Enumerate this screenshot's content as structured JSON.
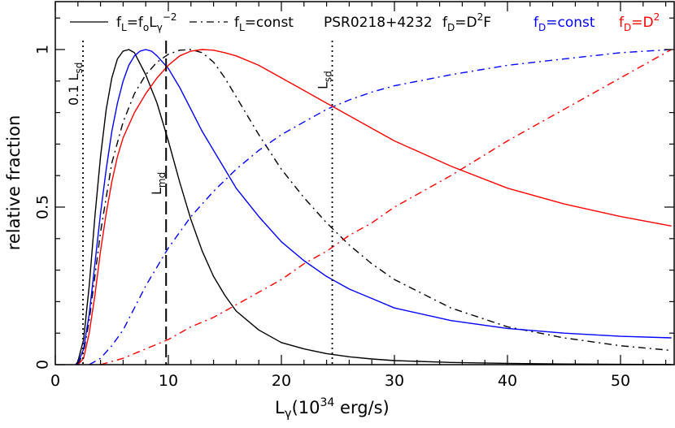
{
  "chart_data": {
    "type": "line",
    "xlabel": "L",
    "xlabel_sub": "γ",
    "xlabel_paren": "(10",
    "xlabel_sup": "34",
    "xlabel_unit": " erg/s)",
    "ylabel": "relative fraction",
    "xlim": [
      0,
      54.5
    ],
    "ylim": [
      0,
      1.1
    ],
    "xticks": [
      0,
      10,
      20,
      30,
      40,
      50
    ],
    "yticks": [
      0,
      0.5,
      1
    ],
    "legend": {
      "line1_label": "f",
      "line1_sub": "L",
      "line1_eq": "=f",
      "line1_sub2": "o",
      "line1_L": "L",
      "line1_sub3": "γ",
      "line1_sup": "−2",
      "line2_label": "f",
      "line2_sub": "L",
      "line2_eq": "=const",
      "source": "PSR0218+4232",
      "fd1": "f",
      "fd1_sub": "D",
      "fd1_eq": "=D",
      "fd1_sup": "2",
      "fd1_end": "F",
      "fd2": "f",
      "fd2_sub": "D",
      "fd2_eq": "=const",
      "fd3": "f",
      "fd3_sub": "D",
      "fd3_eq": "=D",
      "fd3_sup": "2"
    },
    "vlines": [
      {
        "x": 2.45,
        "style": "dotted",
        "label_main": "0.1 L",
        "label_sub": "sd"
      },
      {
        "x": 9.8,
        "style": "dashed",
        "label_main": "L",
        "label_sub": "md"
      },
      {
        "x": 24.5,
        "style": "dotted",
        "label_main": "L",
        "label_sub": "sd"
      }
    ],
    "series": [
      {
        "color": "#000000",
        "style": "solid",
        "x": [
          1.8,
          2,
          2.5,
          3,
          3.5,
          4,
          4.5,
          5,
          5.5,
          6,
          6.5,
          7,
          8,
          9,
          10,
          11,
          12,
          13,
          14,
          15,
          16,
          18,
          20,
          22,
          24,
          26,
          28,
          30,
          35,
          40,
          45,
          50,
          54.5
        ],
        "y": [
          0,
          0.01,
          0.08,
          0.25,
          0.47,
          0.66,
          0.81,
          0.91,
          0.97,
          0.995,
          1.0,
          0.99,
          0.92,
          0.83,
          0.71,
          0.58,
          0.46,
          0.36,
          0.28,
          0.22,
          0.17,
          0.11,
          0.07,
          0.05,
          0.035,
          0.025,
          0.018,
          0.013,
          0.007,
          0.004,
          0.002,
          0.001,
          0.0005
        ]
      },
      {
        "color": "#000000",
        "style": "dashdot",
        "x": [
          2,
          2.5,
          3,
          4,
          5,
          6,
          7,
          8,
          9,
          10,
          11,
          12,
          13,
          14,
          15,
          16,
          18,
          20,
          22,
          24,
          26,
          28,
          30,
          35,
          40,
          45,
          50,
          54.5
        ],
        "y": [
          0,
          0.04,
          0.14,
          0.42,
          0.64,
          0.77,
          0.86,
          0.92,
          0.96,
          0.985,
          0.998,
          1.0,
          0.99,
          0.96,
          0.91,
          0.85,
          0.73,
          0.62,
          0.53,
          0.45,
          0.38,
          0.32,
          0.27,
          0.18,
          0.12,
          0.085,
          0.06,
          0.045
        ]
      },
      {
        "color": "#0000ff",
        "style": "solid",
        "x": [
          1.8,
          2,
          2.5,
          3,
          3.5,
          4,
          4.5,
          5,
          5.5,
          6,
          6.5,
          7,
          7.5,
          8,
          8.5,
          9,
          10,
          11,
          12,
          13,
          14,
          15,
          16,
          18,
          20,
          22,
          24,
          26,
          28,
          30,
          35,
          40,
          45,
          50,
          54.5
        ],
        "y": [
          0,
          0.005,
          0.05,
          0.16,
          0.32,
          0.48,
          0.62,
          0.74,
          0.83,
          0.9,
          0.95,
          0.98,
          0.995,
          1.0,
          0.995,
          0.98,
          0.94,
          0.88,
          0.81,
          0.74,
          0.68,
          0.62,
          0.56,
          0.47,
          0.39,
          0.33,
          0.28,
          0.24,
          0.21,
          0.18,
          0.14,
          0.115,
          0.1,
          0.09,
          0.085
        ]
      },
      {
        "color": "#0000ff",
        "style": "dashdot",
        "x": [
          3,
          4,
          5,
          6,
          7,
          8,
          9,
          10,
          12,
          14,
          16,
          18,
          20,
          22,
          24,
          26,
          28,
          30,
          35,
          40,
          45,
          50,
          54.5
        ],
        "y": [
          0,
          0.02,
          0.06,
          0.11,
          0.18,
          0.25,
          0.31,
          0.37,
          0.47,
          0.55,
          0.62,
          0.68,
          0.73,
          0.77,
          0.81,
          0.84,
          0.865,
          0.885,
          0.92,
          0.95,
          0.97,
          0.99,
          1.0
        ]
      },
      {
        "color": "#ff0000",
        "style": "solid",
        "x": [
          2,
          2.5,
          3,
          3.5,
          4,
          4.5,
          5,
          5.5,
          6,
          7,
          8,
          9,
          10,
          11,
          12,
          13,
          14,
          15,
          16,
          18,
          20,
          22,
          24,
          26,
          28,
          30,
          35,
          40,
          45,
          50,
          54.5
        ],
        "y": [
          0,
          0.02,
          0.1,
          0.22,
          0.36,
          0.48,
          0.58,
          0.66,
          0.72,
          0.8,
          0.86,
          0.91,
          0.95,
          0.98,
          0.995,
          1.0,
          0.998,
          0.99,
          0.98,
          0.95,
          0.91,
          0.87,
          0.83,
          0.79,
          0.75,
          0.71,
          0.63,
          0.56,
          0.51,
          0.47,
          0.44
        ]
      },
      {
        "color": "#ff0000",
        "style": "dashdot",
        "x": [
          4,
          6,
          8,
          10,
          12,
          14,
          16,
          18,
          20,
          22,
          24,
          26,
          28,
          30,
          35,
          40,
          45,
          50,
          54.5
        ],
        "y": [
          0,
          0.02,
          0.05,
          0.08,
          0.12,
          0.15,
          0.19,
          0.23,
          0.27,
          0.32,
          0.36,
          0.41,
          0.45,
          0.5,
          0.6,
          0.71,
          0.81,
          0.91,
          1.0
        ]
      }
    ]
  }
}
